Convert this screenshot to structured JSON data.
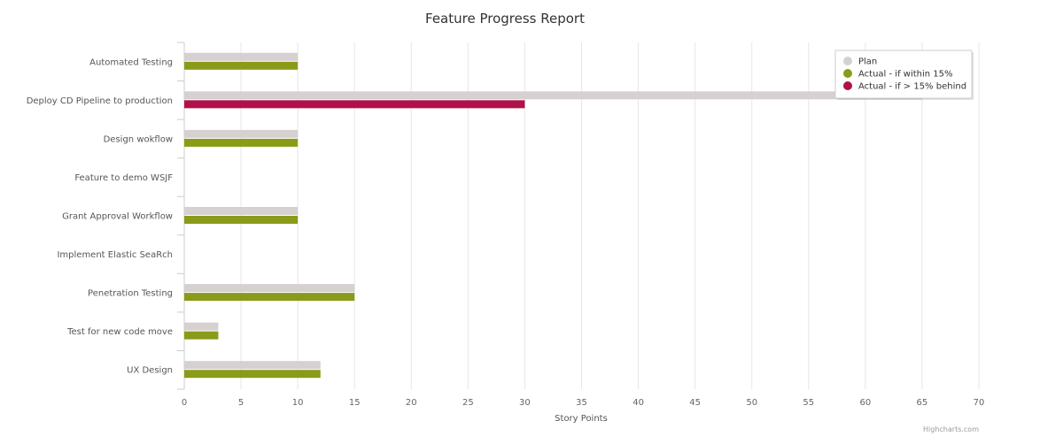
{
  "chart_data": {
    "type": "bar",
    "orientation": "horizontal",
    "title": "Feature Progress Report",
    "xlabel": "Story Points",
    "ylabel": "",
    "xlim": [
      0,
      70
    ],
    "ticks": [
      0,
      5,
      10,
      15,
      20,
      25,
      30,
      35,
      40,
      45,
      50,
      55,
      60,
      65,
      70
    ],
    "grid": true,
    "legend_position": "top-right",
    "categories": [
      "Automated Testing",
      "Deploy CD Pipeline to production",
      "Design wokflow",
      "Feature to demo WSJF",
      "Grant Approval Workflow",
      "Implement Elastic SeaRch",
      "Penetration Testing",
      "Test for new code move",
      "UX Design"
    ],
    "plan": [
      10,
      65,
      10,
      0,
      10,
      0,
      15,
      3,
      12
    ],
    "actual": [
      10,
      30,
      10,
      0,
      10,
      0,
      15,
      3,
      12
    ],
    "actual_status": [
      "within",
      "behind",
      "within",
      "within",
      "within",
      "within",
      "within",
      "within",
      "within"
    ],
    "legend": [
      {
        "key": "plan",
        "name": "Plan",
        "color": "#d6d0d0"
      },
      {
        "key": "within",
        "name": "Actual - if within 15%",
        "color": "#8a9a19"
      },
      {
        "key": "behind",
        "name": "Actual - if > 15% behind",
        "color": "#b0114a"
      }
    ],
    "credits": "Highcharts.com"
  }
}
